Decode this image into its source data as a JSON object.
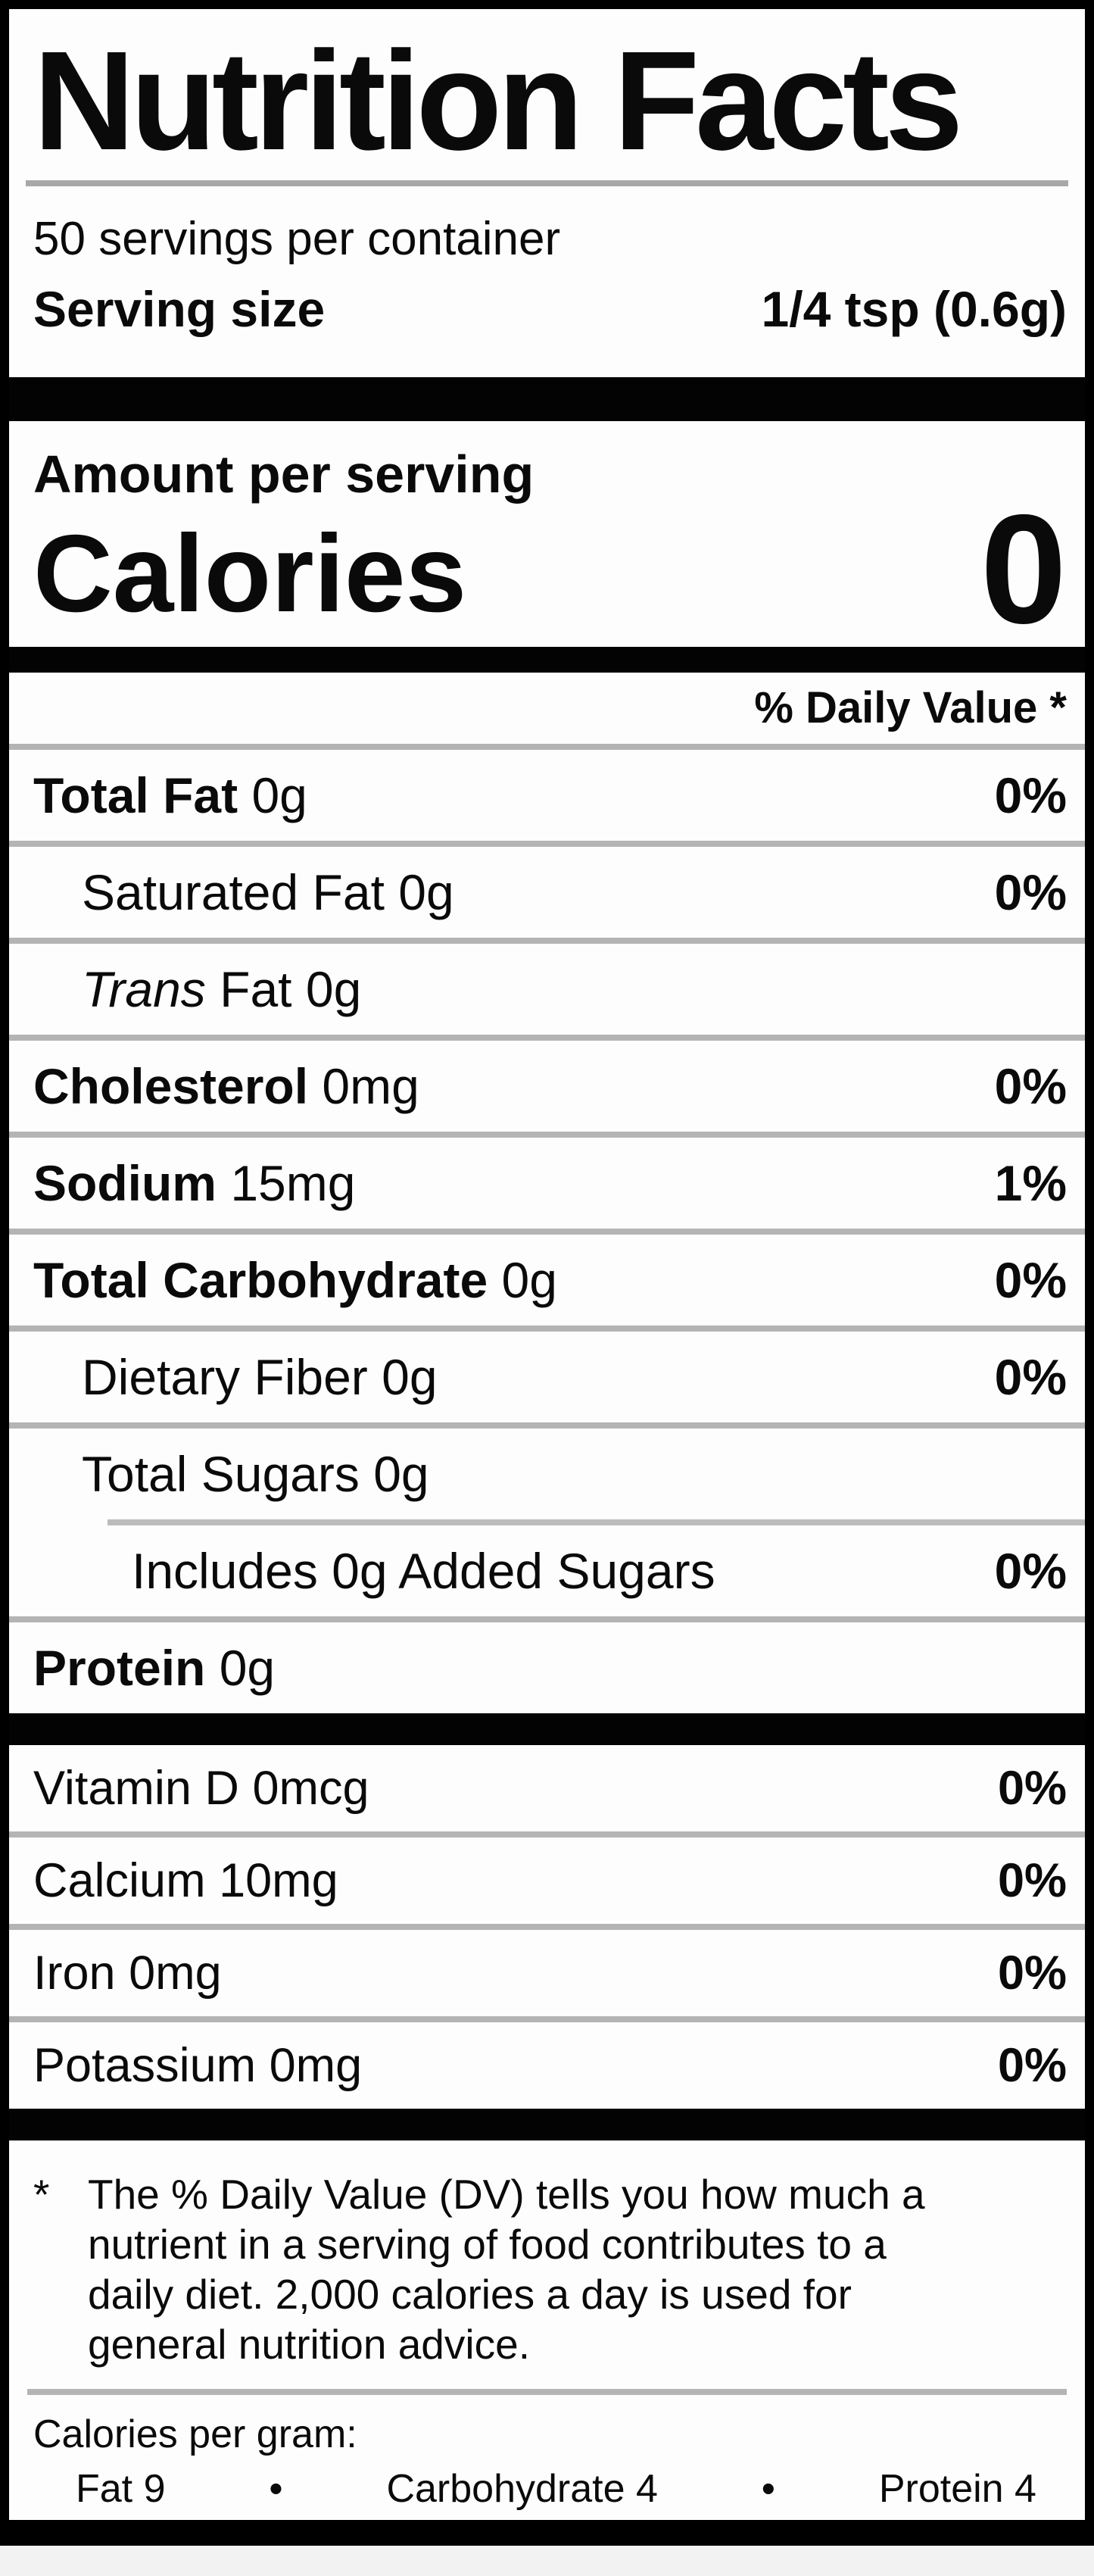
{
  "label": {
    "title": "Nutrition Facts",
    "servings_per_container": "50 servings per container",
    "serving_size_label": "Serving size",
    "serving_size_value": "1/4 tsp (0.6g)",
    "amount_per_serving": "Amount per serving",
    "calories_label": "Calories",
    "calories_value": "0",
    "daily_value_header": "% Daily Value *",
    "rows": [
      {
        "name": "Total Fat",
        "qty": "0g",
        "pct": "0%"
      },
      {
        "name": "Saturated Fat",
        "qty": "0g",
        "pct": "0%"
      },
      {
        "name_italic": "Trans",
        "name_rest": "Fat",
        "qty": "0g",
        "pct": ""
      },
      {
        "name": "Cholesterol",
        "qty": "0mg",
        "pct": "0%"
      },
      {
        "name": "Sodium",
        "qty": "15mg",
        "pct": "1%"
      },
      {
        "name": "Total Carbohydrate",
        "qty": "0g",
        "pct": "0%"
      },
      {
        "name": "Dietary Fiber",
        "qty": "0g",
        "pct": "0%"
      },
      {
        "name": "Total Sugars",
        "qty": "0g",
        "pct": ""
      },
      {
        "name": "Includes 0g Added Sugars",
        "qty": "",
        "pct": "0%"
      },
      {
        "name": "Protein",
        "qty": "0g",
        "pct": ""
      }
    ],
    "vitamins": [
      {
        "name": "Vitamin D",
        "qty": "0mcg",
        "pct": "0%"
      },
      {
        "name": "Calcium",
        "qty": "10mg",
        "pct": "0%"
      },
      {
        "name": "Iron",
        "qty": "0mg",
        "pct": "0%"
      },
      {
        "name": "Potassium",
        "qty": "0mg",
        "pct": "0%"
      }
    ],
    "footnote": {
      "marker": "*",
      "lines": [
        "The % Daily Value (DV) tells you how much a",
        "nutrient in a serving of food contributes to a",
        "daily diet. 2,000 calories a day is used for",
        "general nutrition advice."
      ]
    },
    "calories_per_gram": {
      "heading": "Calories per gram:",
      "fat": "Fat 9",
      "bullet1": "•",
      "carbohydrate": "Carbohydrate 4",
      "bullet2": "•",
      "protein": "Protein 4"
    },
    "colors": {
      "bar_black": "#030303",
      "separator_gray": "#b4b4b4",
      "background": "#fdfdfd"
    }
  }
}
